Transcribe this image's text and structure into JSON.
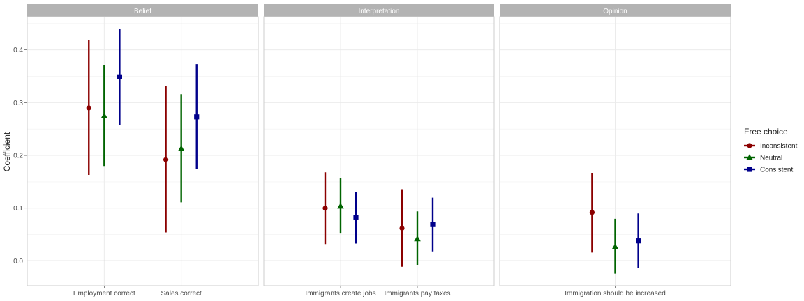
{
  "chart_data": {
    "type": "scatter",
    "ylabel": "Coefficient",
    "ylim": [
      -0.047,
      0.463
    ],
    "y_ticks": [
      0.0,
      0.1,
      0.2,
      0.3,
      0.4
    ],
    "y_tick_labels": [
      "0.0",
      "0.1",
      "0.2",
      "0.3",
      "0.4"
    ],
    "grid": true,
    "reference_line": 0,
    "legend": {
      "title": "Free choice",
      "position": "right",
      "entries": [
        {
          "label": "Inconsistent",
          "color": "#8B0000",
          "shape": "circle"
        },
        {
          "label": "Neutral",
          "color": "#006400",
          "shape": "triangle"
        },
        {
          "label": "Consistent",
          "color": "#00008B",
          "shape": "square"
        }
      ]
    },
    "panels": [
      {
        "title": "Belief",
        "categories": [
          "Employment correct",
          "Sales correct"
        ],
        "series": [
          {
            "name": "Inconsistent",
            "values": [
              0.29,
              0.192
            ],
            "lower": [
              0.163,
              0.054
            ],
            "upper": [
              0.418,
              0.331
            ]
          },
          {
            "name": "Neutral",
            "values": [
              0.275,
              0.213
            ],
            "lower": [
              0.18,
              0.111
            ],
            "upper": [
              0.371,
              0.316
            ]
          },
          {
            "name": "Consistent",
            "values": [
              0.349,
              0.273
            ],
            "lower": [
              0.258,
              0.174
            ],
            "upper": [
              0.44,
              0.373
            ]
          }
        ]
      },
      {
        "title": "Interpretation",
        "categories": [
          "Immigrants create jobs",
          "Immigrants pay taxes"
        ],
        "series": [
          {
            "name": "Inconsistent",
            "values": [
              0.1,
              0.062
            ],
            "lower": [
              0.032,
              -0.011
            ],
            "upper": [
              0.168,
              0.136
            ]
          },
          {
            "name": "Neutral",
            "values": [
              0.104,
              0.042
            ],
            "lower": [
              0.052,
              -0.008
            ],
            "upper": [
              0.157,
              0.094
            ]
          },
          {
            "name": "Consistent",
            "values": [
              0.082,
              0.069
            ],
            "lower": [
              0.033,
              0.018
            ],
            "upper": [
              0.131,
              0.12
            ]
          }
        ]
      },
      {
        "title": "Opinion",
        "categories": [
          "Immigration should be increased"
        ],
        "series": [
          {
            "name": "Inconsistent",
            "values": [
              0.092
            ],
            "lower": [
              0.016
            ],
            "upper": [
              0.167
            ]
          },
          {
            "name": "Neutral",
            "values": [
              0.027
            ],
            "lower": [
              -0.024
            ],
            "upper": [
              0.08
            ]
          },
          {
            "name": "Consistent",
            "values": [
              0.038
            ],
            "lower": [
              -0.013
            ],
            "upper": [
              0.09
            ]
          }
        ]
      }
    ]
  }
}
